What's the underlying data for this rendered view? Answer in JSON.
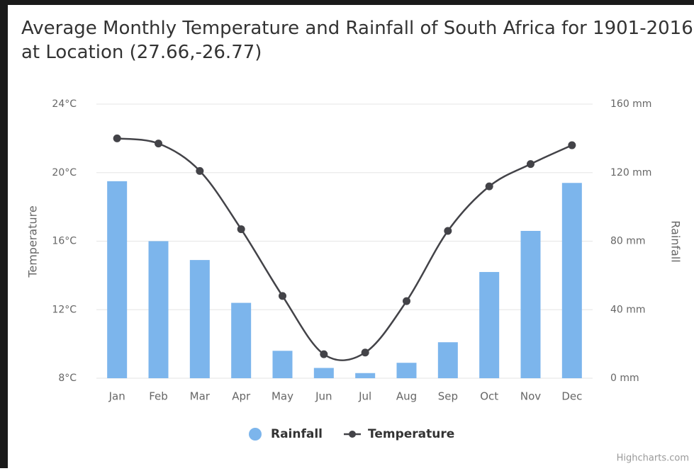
{
  "chart_data": {
    "type": "combo",
    "title": "Average Monthly Temperature and Rainfall of South Africa for 1901-2016 at Location (27.66,-26.77)",
    "categories": [
      "Jan",
      "Feb",
      "Mar",
      "Apr",
      "May",
      "Jun",
      "Jul",
      "Aug",
      "Sep",
      "Oct",
      "Nov",
      "Dec"
    ],
    "ylabel": "Temperature",
    "y2label": "Rainfall",
    "ylim": [
      8,
      24
    ],
    "yticks": [
      {
        "value": 8,
        "label": "8°C"
      },
      {
        "value": 12,
        "label": "12°C"
      },
      {
        "value": 16,
        "label": "16°C"
      },
      {
        "value": 20,
        "label": "20°C"
      },
      {
        "value": 24,
        "label": "24°C"
      }
    ],
    "y2lim": [
      0,
      160
    ],
    "y2ticks": [
      {
        "value": 0,
        "label": "0 mm"
      },
      {
        "value": 40,
        "label": "40 mm"
      },
      {
        "value": 80,
        "label": "80 mm"
      },
      {
        "value": 120,
        "label": "120 mm"
      },
      {
        "value": 160,
        "label": "160 mm"
      }
    ],
    "grid": true,
    "legend": "bottom",
    "series": [
      {
        "name": "Rainfall",
        "type": "column",
        "axis": "y2",
        "color": "#7cb5ec",
        "values": [
          115,
          80,
          69,
          44,
          16,
          6,
          3,
          9,
          21,
          62,
          86,
          114
        ]
      },
      {
        "name": "Temperature",
        "type": "spline",
        "axis": "y",
        "color": "#434348",
        "values": [
          22.0,
          21.7,
          20.1,
          16.7,
          12.8,
          9.4,
          9.5,
          12.5,
          16.6,
          19.2,
          20.5,
          21.6
        ]
      }
    ],
    "credits": "Highcharts.com"
  }
}
